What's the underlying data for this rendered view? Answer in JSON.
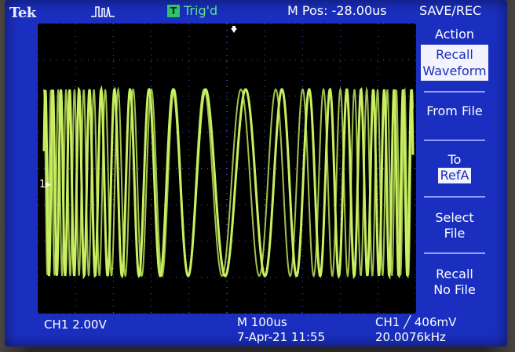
{
  "header": {
    "brand": "Tek",
    "trigger_badge": "T",
    "trigger_status": "Trig'd",
    "horizontal_position": "M Pos: -28.00us"
  },
  "side_menu": {
    "title": "SAVE/REC",
    "action_label": "Action",
    "action_line1": "Recall",
    "action_line2": "Waveform",
    "from_file": "From File",
    "to_label": "To",
    "to_value": "RefA",
    "select_line1": "Select",
    "select_line2": "File",
    "recall_line1": "Recall",
    "recall_line2": "No File"
  },
  "channel": {
    "marker": "1",
    "scale": "CH1  2.00V"
  },
  "timebase": {
    "scale": "M 100us",
    "date_time": "7-Apr-21 11:55"
  },
  "trigger": {
    "readout": "CH1 ╱ 406mV",
    "frequency": "20.0076kHz"
  },
  "colors": {
    "screen": "#1a2fbf",
    "trace": "#c8f060",
    "grid": "#4a5cc0"
  }
}
